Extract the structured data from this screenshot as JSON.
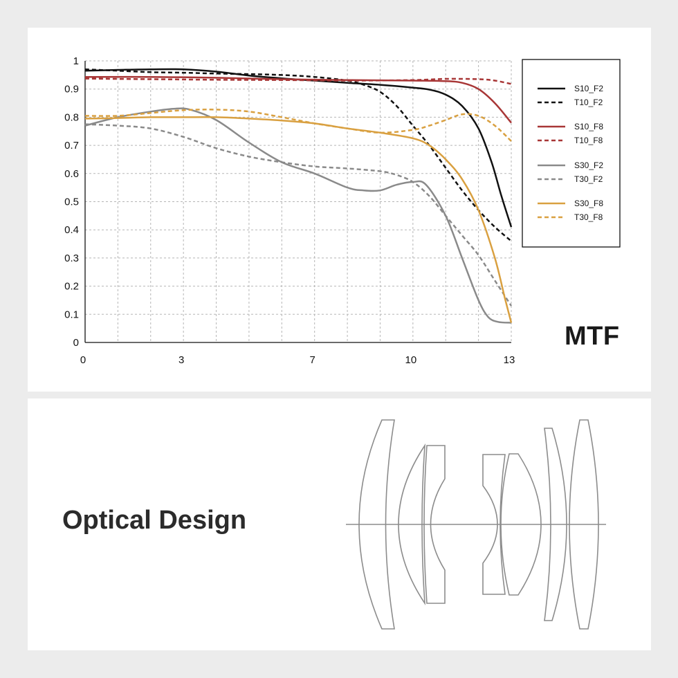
{
  "mtf": {
    "label": "MTF"
  },
  "optical": {
    "label": "Optical Design"
  },
  "chart_data": {
    "type": "line",
    "title": "",
    "xlabel": "",
    "ylabel": "",
    "xlim": [
      0,
      13
    ],
    "ylim": [
      0,
      1
    ],
    "x_ticks": [
      0,
      3,
      7,
      10,
      13
    ],
    "y_ticks": [
      0,
      0.1,
      0.2,
      0.3,
      0.4,
      0.5,
      0.6,
      0.7,
      0.8,
      0.9,
      1
    ],
    "grid": true,
    "legend_position": "right",
    "series": [
      {
        "name": "S10_F2",
        "color": "#111111",
        "dash": "solid",
        "points": [
          [
            0,
            0.965
          ],
          [
            1,
            0.968
          ],
          [
            2,
            0.97
          ],
          [
            3,
            0.97
          ],
          [
            4,
            0.962
          ],
          [
            5,
            0.948
          ],
          [
            6,
            0.938
          ],
          [
            7,
            0.93
          ],
          [
            8,
            0.922
          ],
          [
            9,
            0.915
          ],
          [
            10,
            0.905
          ],
          [
            10.5,
            0.898
          ],
          [
            11,
            0.88
          ],
          [
            11.5,
            0.84
          ],
          [
            12,
            0.76
          ],
          [
            12.4,
            0.64
          ],
          [
            12.7,
            0.52
          ],
          [
            13,
            0.41
          ]
        ]
      },
      {
        "name": "T10_F2",
        "color": "#111111",
        "dash": "dashed",
        "points": [
          [
            0,
            0.97
          ],
          [
            1,
            0.965
          ],
          [
            2,
            0.96
          ],
          [
            3,
            0.958
          ],
          [
            4,
            0.955
          ],
          [
            5,
            0.953
          ],
          [
            6,
            0.95
          ],
          [
            7,
            0.943
          ],
          [
            8,
            0.93
          ],
          [
            8.5,
            0.915
          ],
          [
            9,
            0.89
          ],
          [
            9.5,
            0.84
          ],
          [
            10,
            0.77
          ],
          [
            10.5,
            0.7
          ],
          [
            11,
            0.62
          ],
          [
            11.5,
            0.54
          ],
          [
            12,
            0.47
          ],
          [
            12.5,
            0.41
          ],
          [
            13,
            0.36
          ]
        ]
      },
      {
        "name": "S10_F8",
        "color": "#a83636",
        "dash": "solid",
        "points": [
          [
            0,
            0.943
          ],
          [
            2,
            0.943
          ],
          [
            4,
            0.94
          ],
          [
            6,
            0.935
          ],
          [
            8,
            0.932
          ],
          [
            10,
            0.93
          ],
          [
            11,
            0.928
          ],
          [
            11.5,
            0.922
          ],
          [
            12,
            0.9
          ],
          [
            12.5,
            0.85
          ],
          [
            13,
            0.78
          ]
        ]
      },
      {
        "name": "T10_F8",
        "color": "#a83636",
        "dash": "dashed",
        "points": [
          [
            0,
            0.937
          ],
          [
            2,
            0.935
          ],
          [
            4,
            0.933
          ],
          [
            6,
            0.932
          ],
          [
            8,
            0.93
          ],
          [
            10,
            0.932
          ],
          [
            11,
            0.936
          ],
          [
            12,
            0.935
          ],
          [
            12.5,
            0.93
          ],
          [
            13,
            0.918
          ]
        ]
      },
      {
        "name": "S30_F2",
        "color": "#8a8a8a",
        "dash": "solid",
        "points": [
          [
            0,
            0.77
          ],
          [
            1,
            0.8
          ],
          [
            2,
            0.82
          ],
          [
            2.7,
            0.83
          ],
          [
            3.2,
            0.827
          ],
          [
            4,
            0.79
          ],
          [
            5,
            0.71
          ],
          [
            6,
            0.64
          ],
          [
            7,
            0.6
          ],
          [
            8,
            0.55
          ],
          [
            8.5,
            0.54
          ],
          [
            9,
            0.54
          ],
          [
            9.5,
            0.56
          ],
          [
            10,
            0.57
          ],
          [
            10.4,
            0.56
          ],
          [
            11,
            0.45
          ],
          [
            11.5,
            0.3
          ],
          [
            12,
            0.15
          ],
          [
            12.3,
            0.09
          ],
          [
            12.6,
            0.073
          ],
          [
            13,
            0.07
          ]
        ]
      },
      {
        "name": "T30_F2",
        "color": "#8a8a8a",
        "dash": "dashed",
        "points": [
          [
            0,
            0.775
          ],
          [
            1,
            0.77
          ],
          [
            2,
            0.76
          ],
          [
            3,
            0.73
          ],
          [
            4,
            0.69
          ],
          [
            5,
            0.66
          ],
          [
            6,
            0.64
          ],
          [
            7,
            0.625
          ],
          [
            8,
            0.618
          ],
          [
            9,
            0.608
          ],
          [
            9.5,
            0.595
          ],
          [
            10,
            0.57
          ],
          [
            10.5,
            0.52
          ],
          [
            11,
            0.45
          ],
          [
            11.5,
            0.38
          ],
          [
            12,
            0.31
          ],
          [
            12.5,
            0.22
          ],
          [
            13,
            0.13
          ]
        ]
      },
      {
        "name": "S30_F8",
        "color": "#d9a040",
        "dash": "solid",
        "points": [
          [
            0,
            0.795
          ],
          [
            1,
            0.797
          ],
          [
            2,
            0.8
          ],
          [
            3,
            0.8
          ],
          [
            4,
            0.8
          ],
          [
            5,
            0.795
          ],
          [
            6,
            0.788
          ],
          [
            7,
            0.778
          ],
          [
            8,
            0.76
          ],
          [
            9,
            0.745
          ],
          [
            10,
            0.725
          ],
          [
            10.5,
            0.7
          ],
          [
            11,
            0.65
          ],
          [
            11.5,
            0.58
          ],
          [
            12,
            0.47
          ],
          [
            12.5,
            0.3
          ],
          [
            12.8,
            0.16
          ],
          [
            13,
            0.07
          ]
        ]
      },
      {
        "name": "T30_F8",
        "color": "#d9a040",
        "dash": "dashed",
        "points": [
          [
            0,
            0.805
          ],
          [
            1,
            0.805
          ],
          [
            2,
            0.815
          ],
          [
            3,
            0.825
          ],
          [
            4,
            0.827
          ],
          [
            5,
            0.82
          ],
          [
            6,
            0.8
          ],
          [
            7,
            0.778
          ],
          [
            8,
            0.76
          ],
          [
            9,
            0.745
          ],
          [
            10,
            0.755
          ],
          [
            10.5,
            0.77
          ],
          [
            11,
            0.79
          ],
          [
            11.5,
            0.81
          ],
          [
            12,
            0.805
          ],
          [
            12.5,
            0.77
          ],
          [
            13,
            0.715
          ]
        ]
      }
    ]
  }
}
